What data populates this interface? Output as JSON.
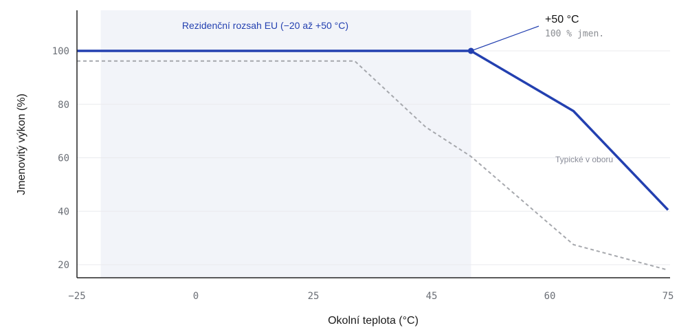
{
  "chart_data": {
    "type": "line",
    "xlabel": "Okolní teplota (°C)",
    "ylabel": "Jmenovitý výkon (%)",
    "x_ticks": [
      -25,
      0,
      25,
      45,
      60,
      75
    ],
    "x_tick_labels": [
      "−25",
      "0",
      "25",
      "45",
      "60",
      "75"
    ],
    "y_ticks": [
      20,
      40,
      60,
      80,
      100
    ],
    "y_tick_labels": [
      "20",
      "40",
      "60",
      "80",
      "100"
    ],
    "ylim": [
      17,
      115
    ],
    "grid": true,
    "band": {
      "x_start": -20,
      "x_end": 50,
      "label": "Rezidenční rozsah EU (−20 až +50 °C)"
    },
    "series": [
      {
        "style": "solid",
        "points": [
          [
            -25,
            100
          ],
          [
            50,
            100
          ],
          [
            63,
            77.5
          ],
          [
            75,
            40.5
          ]
        ]
      },
      {
        "name": "Typické v oboru",
        "style": "dashed",
        "points": [
          [
            -25,
            96.2
          ],
          [
            32,
            96.2
          ],
          [
            44,
            71.5
          ],
          [
            50,
            60.5
          ],
          [
            63,
            27.5
          ],
          [
            75,
            18
          ]
        ]
      }
    ],
    "annotation": {
      "x": 50,
      "y": 100,
      "title": "+50 °C",
      "subtitle": "100 % jmen."
    }
  },
  "colors": {
    "primary": "#2340b0",
    "dashed": "#a6a8ad",
    "band": "#f2f4f9",
    "band_text": "#2340b0",
    "grid": "#e9eaed",
    "axis": "#222222"
  }
}
